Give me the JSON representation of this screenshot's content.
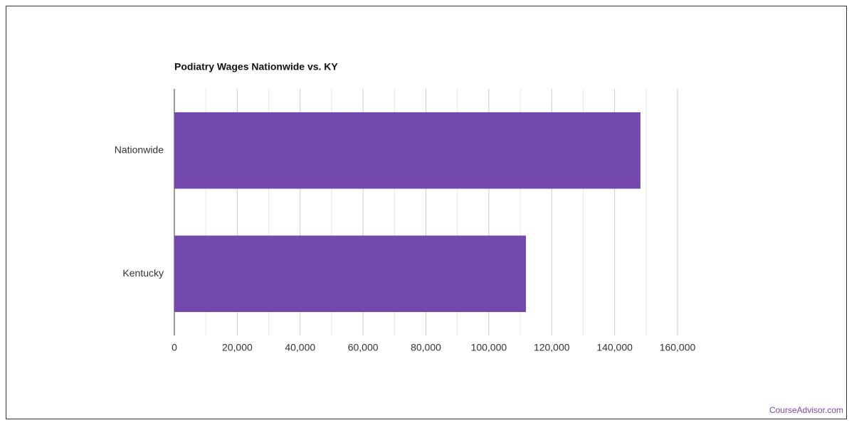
{
  "chart_data": {
    "type": "bar",
    "orientation": "horizontal",
    "title": "Podiatry Wages Nationwide vs. KY",
    "categories": [
      "Nationwide",
      "Kentucky"
    ],
    "values": [
      148220,
      111800
    ],
    "color": "#7449ae",
    "xlim": [
      0,
      160000
    ],
    "xticks": [
      0,
      {
        "value": 20000,
        "label": "20,000"
      },
      {
        "value": 40000,
        "label": "40,000"
      },
      {
        "value": 60000,
        "label": "60,000"
      },
      {
        "value": 80000,
        "label": "80,000"
      },
      {
        "value": 100000,
        "label": "100,000"
      },
      {
        "value": 120000,
        "label": "120,000"
      },
      {
        "value": 140000,
        "label": "140,000"
      },
      {
        "value": 160000,
        "label": "160,000"
      }
    ],
    "grid": true
  },
  "footer": "CourseAdvisor.com"
}
